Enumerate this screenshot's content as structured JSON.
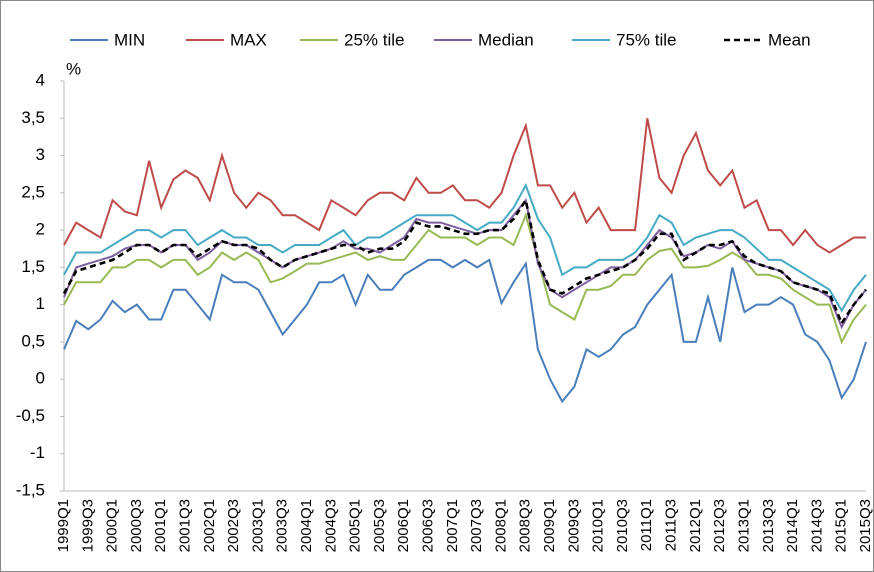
{
  "chart_data": {
    "type": "line",
    "y_label": "%",
    "categories": [
      "1999Q1",
      null,
      "1999Q3",
      null,
      "2000Q1",
      null,
      "2000Q3",
      null,
      "2001Q1",
      null,
      "2001Q3",
      null,
      "2002Q1",
      null,
      "2002Q3",
      null,
      "2003Q1",
      null,
      "2003Q3",
      null,
      "2004Q1",
      null,
      "2004Q3",
      null,
      "2005Q1",
      null,
      "2005Q3",
      null,
      "2006Q1",
      null,
      "2006Q3",
      null,
      "2007Q1",
      null,
      "2007Q3",
      null,
      "2008Q1",
      null,
      "2008Q3",
      null,
      "2009Q1",
      null,
      "2009Q3",
      null,
      "2010Q1",
      null,
      "2010Q3",
      null,
      "2011Q1",
      null,
      "2011Q3",
      null,
      "2012Q1",
      null,
      "2012Q3",
      null,
      "2013Q1",
      null,
      "2013Q3",
      null,
      "2014Q1",
      null,
      "2014Q3",
      null,
      "2015Q1",
      null,
      "2015Q3"
    ],
    "series": [
      {
        "name": "MIN",
        "color": "#4a7ebb",
        "dashed": false,
        "values": [
          0.4,
          0.78,
          0.67,
          0.8,
          1.05,
          0.9,
          1.0,
          0.8,
          0.8,
          1.2,
          1.2,
          1.0,
          0.8,
          1.4,
          1.3,
          1.3,
          1.2,
          0.9,
          0.6,
          0.8,
          1.0,
          1.3,
          1.3,
          1.4,
          1.0,
          1.4,
          1.2,
          1.2,
          1.4,
          1.5,
          1.6,
          1.6,
          1.5,
          1.6,
          1.5,
          1.6,
          1.02,
          1.3,
          1.55,
          0.4,
          0.0,
          -0.3,
          -0.1,
          0.4,
          0.3,
          0.4,
          0.6,
          0.7,
          1.0,
          1.2,
          1.4,
          0.5,
          0.5,
          1.1,
          0.5,
          1.5,
          0.9,
          1.0,
          1.0,
          1.1,
          1.0,
          0.6,
          0.5,
          0.25,
          -0.25,
          0.0,
          0.5
        ]
      },
      {
        "name": "MAX",
        "color": "#be4b48",
        "dashed": false,
        "values": [
          1.8,
          2.1,
          2.0,
          1.9,
          2.4,
          2.25,
          2.2,
          2.93,
          2.3,
          2.68,
          2.8,
          2.7,
          2.4,
          3.0,
          2.5,
          2.3,
          2.5,
          2.4,
          2.2,
          2.2,
          2.1,
          2.0,
          2.4,
          2.3,
          2.2,
          2.4,
          2.5,
          2.5,
          2.4,
          2.7,
          2.5,
          2.5,
          2.6,
          2.4,
          2.4,
          2.3,
          2.5,
          3.0,
          3.4,
          2.6,
          2.6,
          2.3,
          2.5,
          2.1,
          2.3,
          2.0,
          2.0,
          2.0,
          3.5,
          2.7,
          2.5,
          3.0,
          3.3,
          2.8,
          2.6,
          2.8,
          2.3,
          2.4,
          2.0,
          2.0,
          1.8,
          2.0,
          1.8,
          1.7,
          1.8,
          1.9,
          1.9
        ]
      },
      {
        "name": "25% tile",
        "color": "#98b954",
        "dashed": false,
        "values": [
          1.0,
          1.3,
          1.3,
          1.3,
          1.5,
          1.5,
          1.6,
          1.6,
          1.5,
          1.6,
          1.6,
          1.4,
          1.5,
          1.7,
          1.6,
          1.7,
          1.6,
          1.3,
          1.35,
          1.45,
          1.55,
          1.55,
          1.6,
          1.65,
          1.7,
          1.6,
          1.65,
          1.6,
          1.6,
          1.8,
          2.0,
          1.9,
          1.9,
          1.9,
          1.8,
          1.9,
          1.9,
          1.8,
          2.2,
          1.6,
          1.0,
          0.9,
          0.8,
          1.2,
          1.2,
          1.25,
          1.4,
          1.4,
          1.6,
          1.72,
          1.75,
          1.5,
          1.5,
          1.52,
          1.6,
          1.7,
          1.6,
          1.4,
          1.4,
          1.35,
          1.2,
          1.1,
          1.0,
          1.0,
          0.5,
          0.8,
          1.0
        ]
      },
      {
        "name": "Median",
        "color": "#7d5fa0",
        "dashed": false,
        "values": [
          1.1,
          1.5,
          1.55,
          1.6,
          1.65,
          1.75,
          1.8,
          1.8,
          1.7,
          1.8,
          1.8,
          1.6,
          1.7,
          1.85,
          1.8,
          1.8,
          1.7,
          1.6,
          1.5,
          1.6,
          1.65,
          1.7,
          1.75,
          1.85,
          1.75,
          1.75,
          1.7,
          1.8,
          1.9,
          2.15,
          2.1,
          2.1,
          2.05,
          2.0,
          1.95,
          2.0,
          2.0,
          2.2,
          2.4,
          1.55,
          1.2,
          1.1,
          1.2,
          1.3,
          1.4,
          1.5,
          1.5,
          1.6,
          1.8,
          2.0,
          1.9,
          1.65,
          1.7,
          1.8,
          1.75,
          1.85,
          1.6,
          1.55,
          1.5,
          1.45,
          1.3,
          1.25,
          1.2,
          1.1,
          0.7,
          1.0,
          1.2
        ]
      },
      {
        "name": "75% tile",
        "color": "#46aac5",
        "dashed": false,
        "values": [
          1.4,
          1.7,
          1.7,
          1.7,
          1.8,
          1.9,
          2.0,
          2.0,
          1.9,
          2.0,
          2.0,
          1.8,
          1.9,
          2.0,
          1.9,
          1.9,
          1.8,
          1.8,
          1.7,
          1.8,
          1.8,
          1.8,
          1.9,
          2.0,
          1.8,
          1.9,
          1.9,
          2.0,
          2.1,
          2.2,
          2.2,
          2.2,
          2.2,
          2.1,
          2.0,
          2.1,
          2.1,
          2.3,
          2.6,
          2.15,
          1.9,
          1.4,
          1.5,
          1.5,
          1.6,
          1.6,
          1.6,
          1.7,
          1.9,
          2.2,
          2.1,
          1.8,
          1.9,
          1.95,
          2.0,
          2.0,
          1.9,
          1.75,
          1.6,
          1.6,
          1.5,
          1.4,
          1.3,
          1.2,
          0.92,
          1.2,
          1.4
        ]
      },
      {
        "name": "Mean",
        "color": "#000000",
        "dashed": true,
        "values": [
          1.15,
          1.45,
          1.5,
          1.55,
          1.6,
          1.7,
          1.8,
          1.8,
          1.7,
          1.8,
          1.8,
          1.65,
          1.75,
          1.85,
          1.8,
          1.8,
          1.75,
          1.6,
          1.5,
          1.6,
          1.65,
          1.7,
          1.75,
          1.8,
          1.8,
          1.7,
          1.75,
          1.75,
          1.85,
          2.1,
          2.05,
          2.05,
          2.0,
          1.95,
          1.95,
          2.0,
          2.0,
          2.15,
          2.4,
          1.6,
          1.2,
          1.15,
          1.25,
          1.35,
          1.4,
          1.45,
          1.5,
          1.6,
          1.75,
          1.95,
          1.95,
          1.6,
          1.7,
          1.8,
          1.8,
          1.85,
          1.65,
          1.55,
          1.5,
          1.45,
          1.3,
          1.25,
          1.2,
          1.15,
          0.75,
          1.0,
          1.2
        ]
      }
    ],
    "ylim": [
      -1.5,
      4
    ],
    "yticks": [
      {
        "value": -1.5,
        "label": "-1,5"
      },
      -1,
      {
        "value": -0.5,
        "label": "-0,5"
      },
      0,
      {
        "value": 0.5,
        "label": "0,5"
      },
      1,
      {
        "value": 1.5,
        "label": "1,5"
      },
      2,
      {
        "value": 2.5,
        "label": "2,5"
      },
      3,
      {
        "value": 3.5,
        "label": "3,5"
      },
      4
    ],
    "legend": "top"
  }
}
